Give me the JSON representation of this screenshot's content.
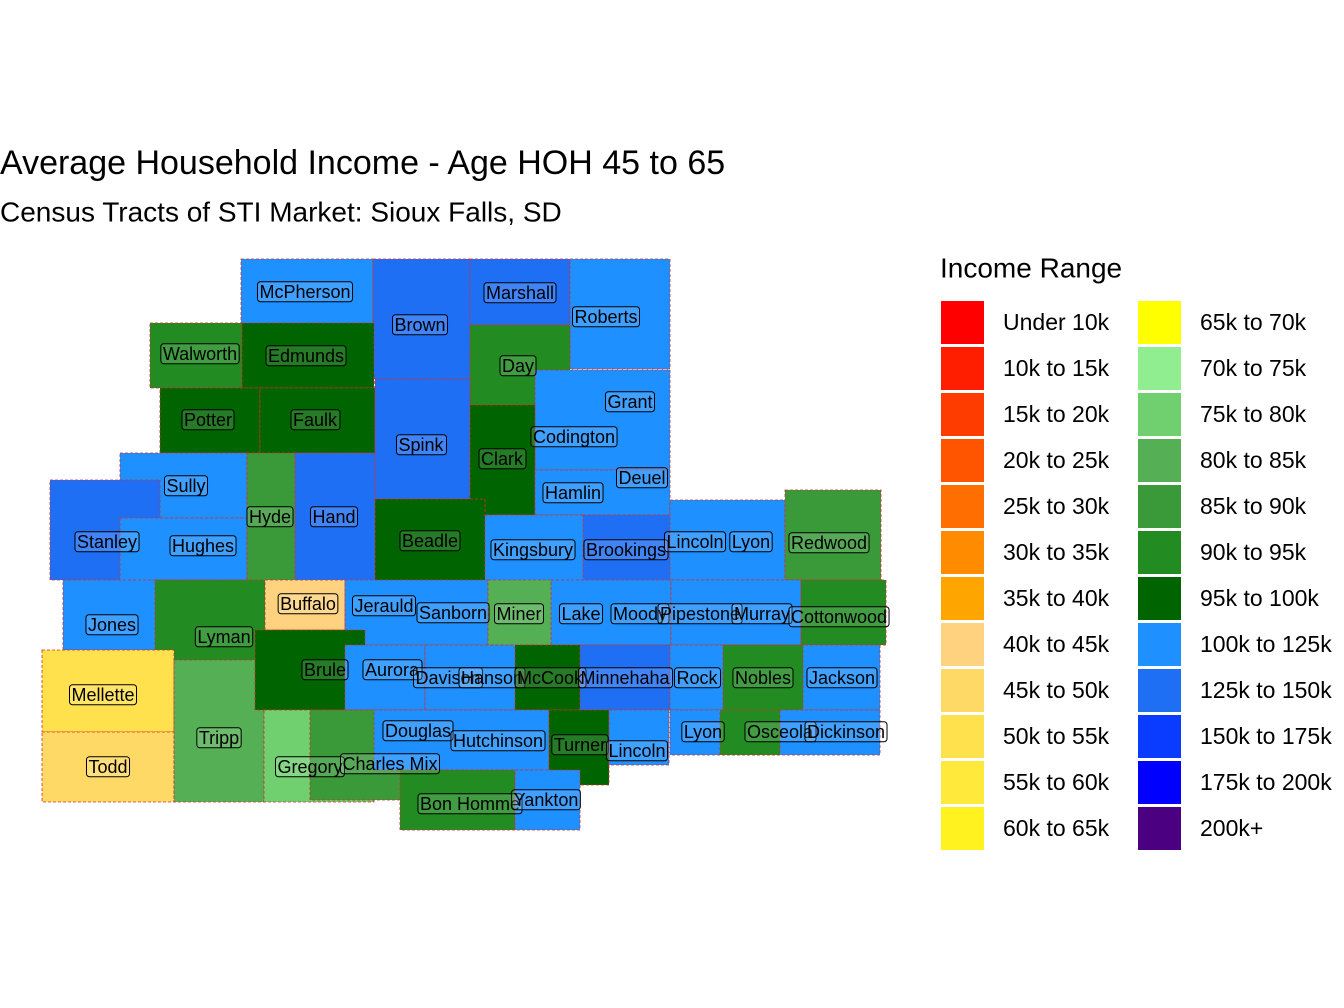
{
  "title": "Average Household Income - Age HOH 45 to 65",
  "subtitle": "Census Tracts of STI Market: Sioux Falls, SD",
  "legend": {
    "title": "Income Range",
    "items": [
      {
        "label": "Under 10k",
        "color": "#ff0000"
      },
      {
        "label": "10k to 15k",
        "color": "#ff1e00"
      },
      {
        "label": "15k to 20k",
        "color": "#ff3c00"
      },
      {
        "label": "20k to 25k",
        "color": "#ff5500"
      },
      {
        "label": "25k to 30k",
        "color": "#ff6e00"
      },
      {
        "label": "30k to 35k",
        "color": "#ff8c00"
      },
      {
        "label": "35k to 40k",
        "color": "#ffa500"
      },
      {
        "label": "40k to 45k",
        "color": "#ffd27f"
      },
      {
        "label": "45k to 50k",
        "color": "#ffd966"
      },
      {
        "label": "50k to 55k",
        "color": "#ffe14d"
      },
      {
        "label": "55k to 60k",
        "color": "#ffe93a"
      },
      {
        "label": "60k to 65k",
        "color": "#fff21e"
      },
      {
        "label": "65k to 70k",
        "color": "#ffff00"
      },
      {
        "label": "70k to 75k",
        "color": "#90ee90"
      },
      {
        "label": "75k to 80k",
        "color": "#70d070"
      },
      {
        "label": "80k to 85k",
        "color": "#55b055"
      },
      {
        "label": "85k to 90k",
        "color": "#3a9a3a"
      },
      {
        "label": "90k to 95k",
        "color": "#228b22"
      },
      {
        "label": "95k to 100k",
        "color": "#006400"
      },
      {
        "label": "100k to 125k",
        "color": "#1e90ff"
      },
      {
        "label": "125k to 150k",
        "color": "#1f6ff5"
      },
      {
        "label": "150k to 175k",
        "color": "#0a3cff"
      },
      {
        "label": "175k to 200k",
        "color": "#0000ff"
      },
      {
        "label": "200k+",
        "color": "#4b0082"
      }
    ]
  },
  "counties": [
    "McPherson",
    "Marshall",
    "Roberts",
    "Brown",
    "Walworth",
    "Edmunds",
    "Day",
    "Grant",
    "Potter",
    "Faulk",
    "Spink",
    "Codington",
    "Clark",
    "Deuel",
    "Sully",
    "Hamlin",
    "Hyde",
    "Hand",
    "Stanley",
    "Hughes",
    "Beadle",
    "Kingsbury",
    "Brookings",
    "Lincoln",
    "Lyon",
    "Redwood",
    "Buffalo",
    "Jerauld",
    "Sanborn",
    "Miner",
    "Lake",
    "Moody",
    "Pipestone",
    "Murray",
    "Cottonwood",
    "Jones",
    "Lyman",
    "Brule",
    "Aurora",
    "Davison",
    "Hanson",
    "McCook",
    "Minnehaha",
    "Rock",
    "Nobles",
    "Jackson",
    "Mellette",
    "Tripp",
    "Douglas",
    "Hutchinson",
    "Turner",
    "Lincoln",
    "Lyon",
    "Osceola",
    "Dickinson",
    "Todd",
    "Gregory",
    "Charles Mix",
    "Bon Homme",
    "Yankton"
  ]
}
